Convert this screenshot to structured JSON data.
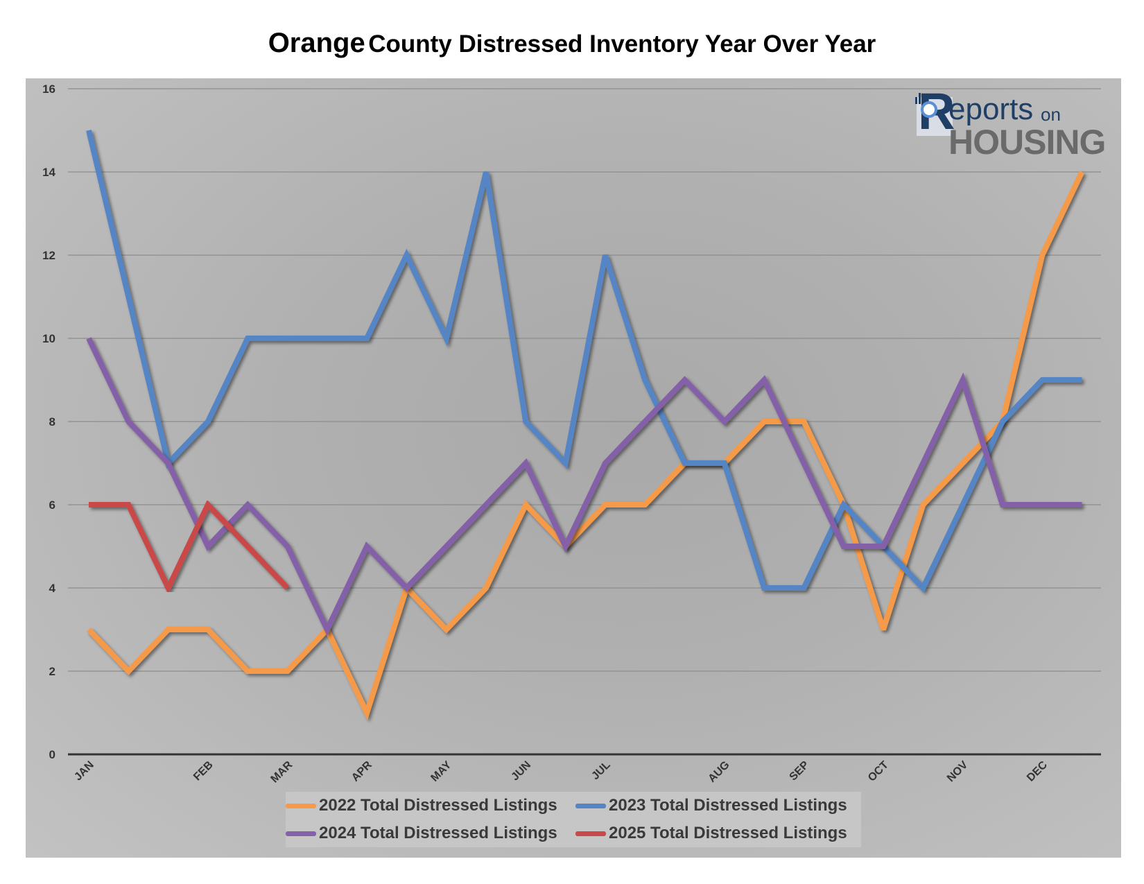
{
  "title": {
    "word1": "Orange",
    "rest": "County Distressed Inventory Year Over Year"
  },
  "logo": {
    "r": "R",
    "reports": "eports",
    "on": "on",
    "housing": "HOUSING"
  },
  "colors": {
    "series_2022": "#f59a4a",
    "series_2023": "#5585c5",
    "series_2024": "#8461a8",
    "series_2025": "#c9484a",
    "gridline": "#8c8c8c",
    "axis": "#333333"
  },
  "chart_data": {
    "type": "line",
    "title": "Orange County Distressed Inventory Year Over Year",
    "x_labels": [
      "JAN",
      "",
      "",
      "FEB",
      "",
      "MAR",
      "",
      "APR",
      "",
      "MAY",
      "",
      "JUN",
      "",
      "JUL",
      "",
      "",
      "AUG",
      "",
      "SEP",
      "",
      "OCT",
      "",
      "NOV",
      "",
      "DEC",
      ""
    ],
    "month_ticks": [
      "JAN",
      "FEB",
      "MAR",
      "APR",
      "MAY",
      "JUN",
      "JUL",
      "AUG",
      "SEP",
      "OCT",
      "NOV",
      "DEC"
    ],
    "ylim": [
      0,
      16
    ],
    "yticks": [
      0,
      2,
      4,
      6,
      8,
      10,
      12,
      14,
      16
    ],
    "grid": true,
    "legend_position": "bottom",
    "series": [
      {
        "name": "2022 Total Distressed Listings",
        "color": "#f59a4a",
        "values": [
          3,
          2,
          3,
          3,
          2,
          2,
          3,
          1,
          4,
          3,
          4,
          6,
          5,
          6,
          6,
          7,
          7,
          8,
          8,
          6,
          3,
          6,
          7,
          8,
          12,
          14
        ]
      },
      {
        "name": "2023 Total Distressed Listings",
        "color": "#5585c5",
        "values": [
          15,
          11,
          7,
          8,
          10,
          10,
          10,
          10,
          12,
          10,
          14,
          8,
          7,
          12,
          9,
          7,
          7,
          4,
          4,
          6,
          5,
          4,
          6,
          8,
          9,
          9
        ]
      },
      {
        "name": "2024 Total Distressed Listings",
        "color": "#8461a8",
        "values": [
          10,
          8,
          7,
          5,
          6,
          5,
          3,
          5,
          4,
          5,
          6,
          7,
          5,
          7,
          8,
          9,
          8,
          9,
          7,
          5,
          5,
          7,
          9,
          6,
          6,
          6
        ]
      },
      {
        "name": "2025 Total Distressed Listings",
        "color": "#c9484a",
        "values": [
          6,
          6,
          4,
          6,
          5,
          4
        ]
      }
    ]
  }
}
